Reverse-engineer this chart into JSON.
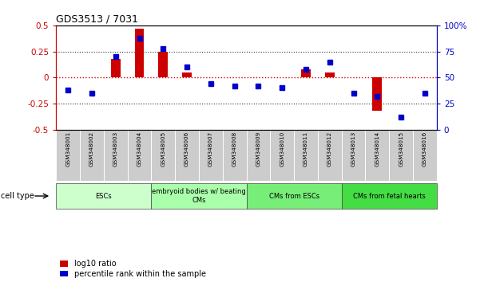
{
  "title": "GDS3513 / 7031",
  "samples": [
    "GSM348001",
    "GSM348002",
    "GSM348003",
    "GSM348004",
    "GSM348005",
    "GSM348006",
    "GSM348007",
    "GSM348008",
    "GSM348009",
    "GSM348010",
    "GSM348011",
    "GSM348012",
    "GSM348013",
    "GSM348014",
    "GSM348015",
    "GSM348016"
  ],
  "log10_ratio": [
    0.0,
    0.0,
    0.18,
    0.47,
    0.25,
    0.05,
    0.0,
    0.0,
    0.0,
    0.0,
    0.08,
    0.05,
    0.0,
    -0.32,
    0.0,
    0.0
  ],
  "percentile_rank": [
    38,
    35,
    70,
    88,
    78,
    60,
    44,
    42,
    42,
    40,
    58,
    65,
    35,
    32,
    12,
    35
  ],
  "ylim": [
    -0.5,
    0.5
  ],
  "yticks_left": [
    -0.5,
    -0.25,
    0.0,
    0.25,
    0.5
  ],
  "yticks_right": [
    0,
    25,
    50,
    75,
    100
  ],
  "ytick_labels_left": [
    "-0.5",
    "-0.25",
    "0",
    "0.25",
    "0.5"
  ],
  "ytick_labels_right": [
    "0",
    "25",
    "50",
    "75",
    "100%"
  ],
  "bar_color": "#cc0000",
  "dot_color": "#0000cc",
  "cell_groups": [
    {
      "label": "ESCs",
      "start": 0,
      "end": 3,
      "color": "#ccffcc"
    },
    {
      "label": "embryoid bodies w/ beating\nCMs",
      "start": 4,
      "end": 7,
      "color": "#aaffaa"
    },
    {
      "label": "CMs from ESCs",
      "start": 8,
      "end": 11,
      "color": "#77ee77"
    },
    {
      "label": "CMs from fetal hearts",
      "start": 12,
      "end": 15,
      "color": "#44dd44"
    }
  ],
  "cell_type_label": "cell type",
  "legend_red_label": "log10 ratio",
  "legend_blue_label": "percentile rank within the sample",
  "bg_color": "#ffffff",
  "label_bg": "#cccccc"
}
